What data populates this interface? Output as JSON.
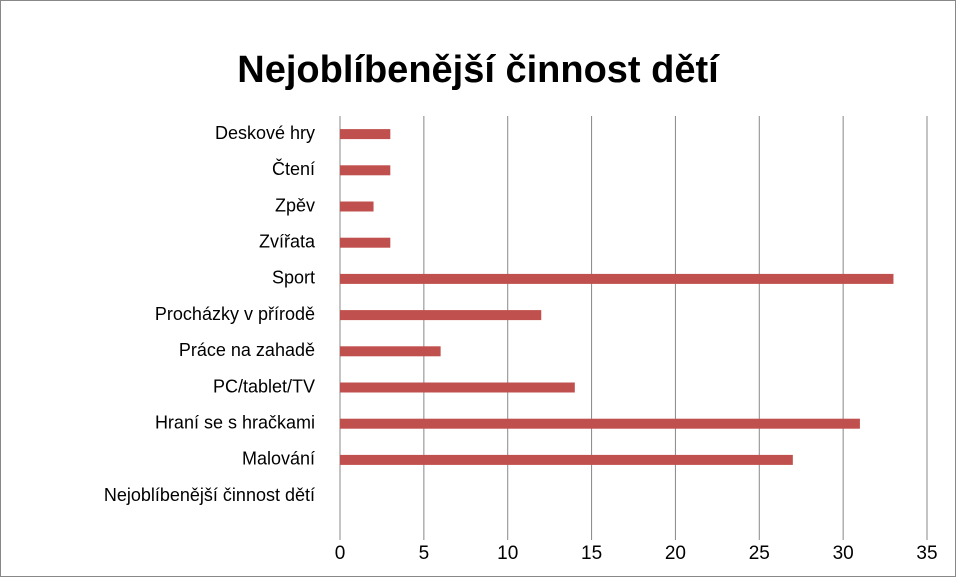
{
  "chart_data": {
    "type": "bar",
    "orientation": "horizontal",
    "title": "Nejoblíbenější činnost dětí",
    "categories": [
      "Deskové hry",
      "Čtení",
      "Zpěv",
      "Zvířata",
      "Sport",
      "Procházky v přírodě",
      "Práce na zahadě",
      "PC/tablet/TV",
      "Hraní se s hračkami",
      "Malování",
      "Nejoblíbenější činnost dětí"
    ],
    "values": [
      3,
      3,
      2,
      3,
      33,
      12,
      6,
      14,
      31,
      27,
      null
    ],
    "color": "#c0504d",
    "xlim": [
      0,
      35
    ],
    "xticks": [
      0,
      5,
      10,
      15,
      20,
      25,
      30,
      35
    ],
    "grid": true
  }
}
